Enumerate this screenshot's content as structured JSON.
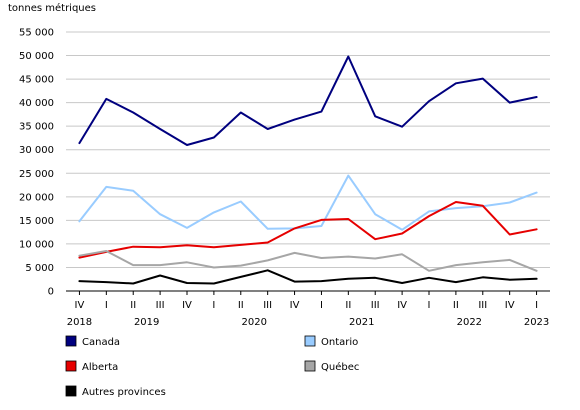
{
  "chart_data": {
    "type": "line",
    "ylabel": "tonnes métriques",
    "ylim": [
      0,
      55000
    ],
    "yticks": [
      0,
      5000,
      10000,
      15000,
      20000,
      25000,
      30000,
      35000,
      40000,
      45000,
      50000,
      55000
    ],
    "ytick_labels": [
      "0",
      "5 000",
      "10 000",
      "15 000",
      "20 000",
      "25 000",
      "30 000",
      "35 000",
      "40 000",
      "45 000",
      "50 000",
      "55 000"
    ],
    "categories": [
      "IV",
      "I",
      "II",
      "III",
      "IV",
      "I",
      "II",
      "III",
      "IV",
      "I",
      "II",
      "III",
      "IV",
      "I",
      "II",
      "III",
      "IV",
      "I"
    ],
    "years": [
      {
        "label": "2018",
        "index": 0
      },
      {
        "label": "2019",
        "index": 2.5
      },
      {
        "label": "2020",
        "index": 6.5
      },
      {
        "label": "2021",
        "index": 10.5
      },
      {
        "label": "2022",
        "index": 14.5
      },
      {
        "label": "2023",
        "index": 17
      }
    ],
    "grid": true,
    "legend_position": "bottom",
    "series": [
      {
        "name": "Canada",
        "color": "#00007f",
        "values": [
          31400,
          40800,
          37900,
          34400,
          31000,
          32600,
          37900,
          34400,
          36400,
          38100,
          49800,
          37100,
          34900,
          40300,
          44100,
          45100,
          40000,
          41200
        ]
      },
      {
        "name": "Ontario",
        "color": "#99ccff",
        "values": [
          14800,
          22100,
          21300,
          16300,
          13400,
          16700,
          19000,
          13200,
          13300,
          13800,
          24500,
          16300,
          13000,
          16900,
          17600,
          18000,
          18800,
          20900
        ]
      },
      {
        "name": "Alberta",
        "color": "#e60000",
        "values": [
          7100,
          8300,
          9400,
          9300,
          9700,
          9300,
          9800,
          10300,
          13300,
          15100,
          15300,
          11000,
          12200,
          15900,
          18900,
          18100,
          12000,
          13100
        ]
      },
      {
        "name": "Québec",
        "color": "#a6a6a6",
        "values": [
          7500,
          8500,
          5500,
          5500,
          6100,
          5000,
          5400,
          6500,
          8100,
          7000,
          7300,
          6900,
          7800,
          4300,
          5500,
          6100,
          6600,
          4300
        ]
      },
      {
        "name": "Autres provinces",
        "color": "#000000",
        "values": [
          2100,
          1900,
          1600,
          3300,
          1700,
          1600,
          3000,
          4400,
          2000,
          2100,
          2600,
          2800,
          1700,
          2800,
          1900,
          2900,
          2400,
          2600
        ]
      }
    ]
  }
}
